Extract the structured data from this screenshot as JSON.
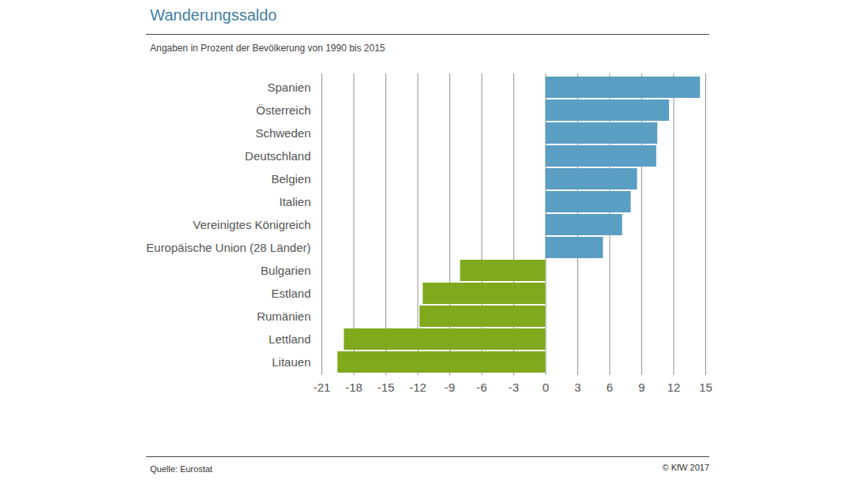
{
  "chart_data": {
    "type": "bar",
    "orientation": "horizontal",
    "title": "Wanderungssaldo",
    "subtitle": "Angaben in Prozent der Bevölkerung von 1990 bis 2015",
    "source": "Quelle: Eurostat",
    "copyright": "© KfW 2017",
    "categories": [
      "Spanien",
      "Österreich",
      "Schweden",
      "Deutschland",
      "Belgien",
      "Italien",
      "Vereinigtes Königreich",
      "Europäische Union (28 Länder)",
      "Bulgarien",
      "Estland",
      "Rumänien",
      "Lettland",
      "Litauen"
    ],
    "values": [
      14.5,
      11.6,
      10.5,
      10.4,
      8.6,
      8.0,
      7.2,
      5.4,
      -8.0,
      -11.5,
      -11.8,
      -18.9,
      -19.5
    ],
    "colors": [
      "#5b9ec4",
      "#5b9ec4",
      "#5b9ec4",
      "#5b9ec4",
      "#5b9ec4",
      "#5b9ec4",
      "#5b9ec4",
      "#5b9ec4",
      "#80a91e",
      "#80a91e",
      "#80a91e",
      "#80a91e",
      "#80a91e"
    ],
    "xlim": [
      -21,
      15
    ],
    "xticks": [
      -21,
      -18,
      -15,
      -12,
      -9,
      -6,
      -3,
      0,
      3,
      6,
      9,
      12,
      15
    ],
    "grid": true
  }
}
